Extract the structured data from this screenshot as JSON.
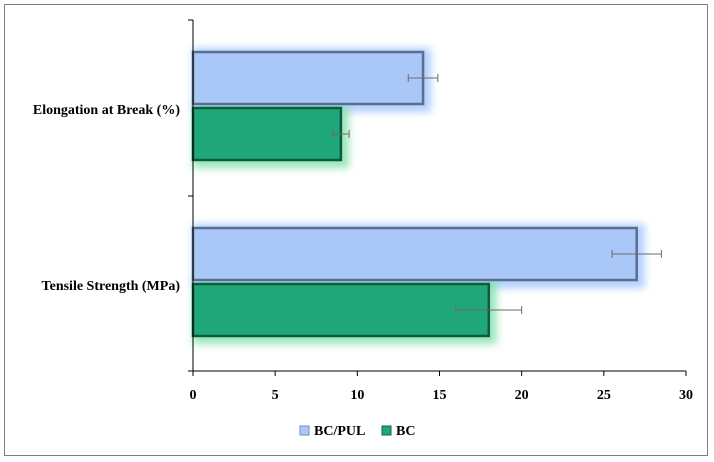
{
  "chart_data": {
    "type": "bar",
    "orientation": "horizontal",
    "categories": [
      "Elongation at Break (%)",
      "Tensile Strength (MPa)"
    ],
    "series": [
      {
        "name": "BC/PUL",
        "values": [
          14,
          27
        ],
        "errors": [
          0.9,
          1.5
        ],
        "color": "#a9c8f8"
      },
      {
        "name": "BC",
        "values": [
          9,
          18
        ],
        "errors": [
          0.5,
          2.0
        ],
        "color": "#1fa77a"
      }
    ],
    "xlim": [
      0,
      30
    ],
    "xticks": [
      0,
      5,
      10,
      15,
      20,
      25,
      30
    ],
    "grid": false,
    "legend": "bottom"
  }
}
